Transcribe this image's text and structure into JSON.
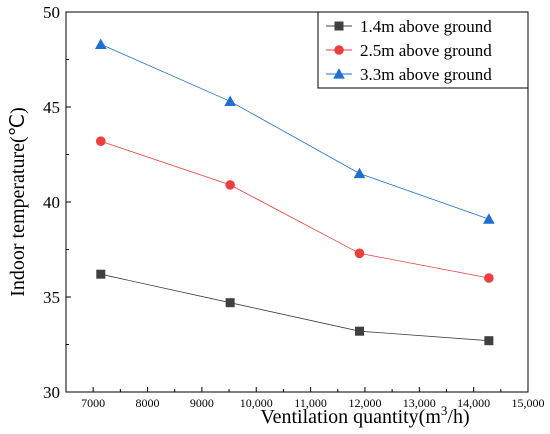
{
  "chart_data": {
    "type": "line",
    "xlabel": "Ventilation quantity(m³/h)",
    "ylabel": "Indoor temperature(℃)",
    "xlim": [
      6500,
      15000
    ],
    "ylim": [
      30,
      50
    ],
    "x_ticks": [
      "7000",
      "8000",
      "9000",
      "10,000",
      "11,000",
      "12,000",
      "13,000",
      "14,000",
      "15,000"
    ],
    "x_tick_values": [
      7000,
      8000,
      9000,
      10000,
      11000,
      12000,
      13000,
      14000,
      15000
    ],
    "y_ticks": [
      "30",
      "35",
      "40",
      "45",
      "50"
    ],
    "y_tick_values": [
      30,
      35,
      40,
      45,
      50
    ],
    "x": [
      7140,
      9520,
      11900,
      14280
    ],
    "series": [
      {
        "name": "1.4m above ground",
        "values": [
          36.2,
          34.7,
          33.2,
          32.7
        ],
        "color": "#404040",
        "marker": "square"
      },
      {
        "name": "2.5m above ground",
        "values": [
          43.2,
          40.9,
          37.3,
          36.0
        ],
        "color": "#ef3e3e",
        "marker": "circle"
      },
      {
        "name": "3.3m above ground",
        "values": [
          48.3,
          45.3,
          41.5,
          39.1
        ],
        "color": "#1f6fd0",
        "marker": "triangle"
      }
    ],
    "legend_position": "top-right",
    "grid": false
  }
}
